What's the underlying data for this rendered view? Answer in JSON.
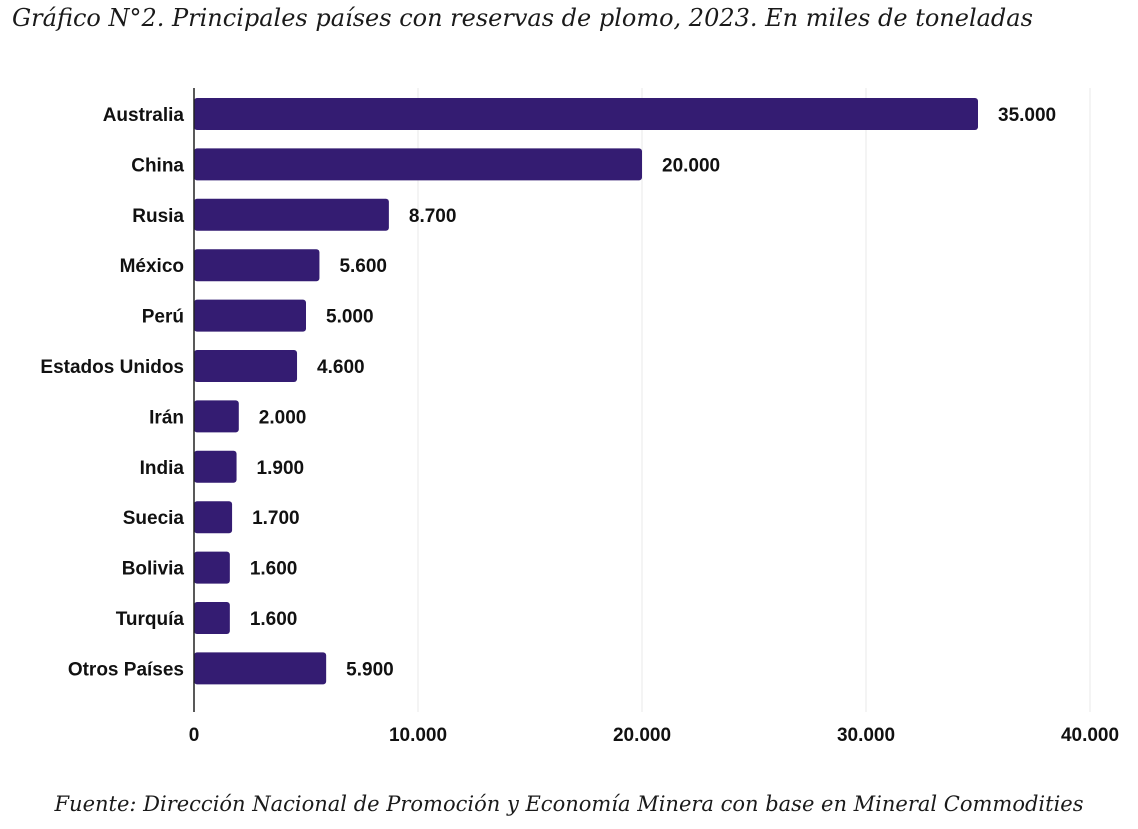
{
  "chart_data": {
    "type": "bar",
    "orientation": "horizontal",
    "title": "Gráfico N°2. Principales países con reservas de plomo, 2023. En miles de toneladas",
    "source": "Fuente: Dirección Nacional de Promoción y Economía Minera con base en Mineral Commodities",
    "categories": [
      "Australia",
      "China",
      "Rusia",
      "México",
      "Perú",
      "Estados Unidos",
      "Irán",
      "India",
      "Suecia",
      "Bolivia",
      "Turquía",
      "Otros Países"
    ],
    "values": [
      35000,
      20000,
      8700,
      5600,
      5000,
      4600,
      2000,
      1900,
      1700,
      1600,
      1600,
      5900
    ],
    "value_labels": [
      "35.000",
      "20.000",
      "8.700",
      "5.600",
      "5.000",
      "4.600",
      "2.000",
      "1.900",
      "1.700",
      "1.600",
      "1.600",
      "5.900"
    ],
    "xlim": [
      0,
      40000
    ],
    "xticks": [
      0,
      10000,
      20000,
      30000,
      40000
    ],
    "xtick_labels": [
      "0",
      "10.000",
      "20.000",
      "30.000",
      "40.000"
    ],
    "bar_color": "#341c72",
    "grid": true,
    "xlabel": "",
    "ylabel": ""
  }
}
